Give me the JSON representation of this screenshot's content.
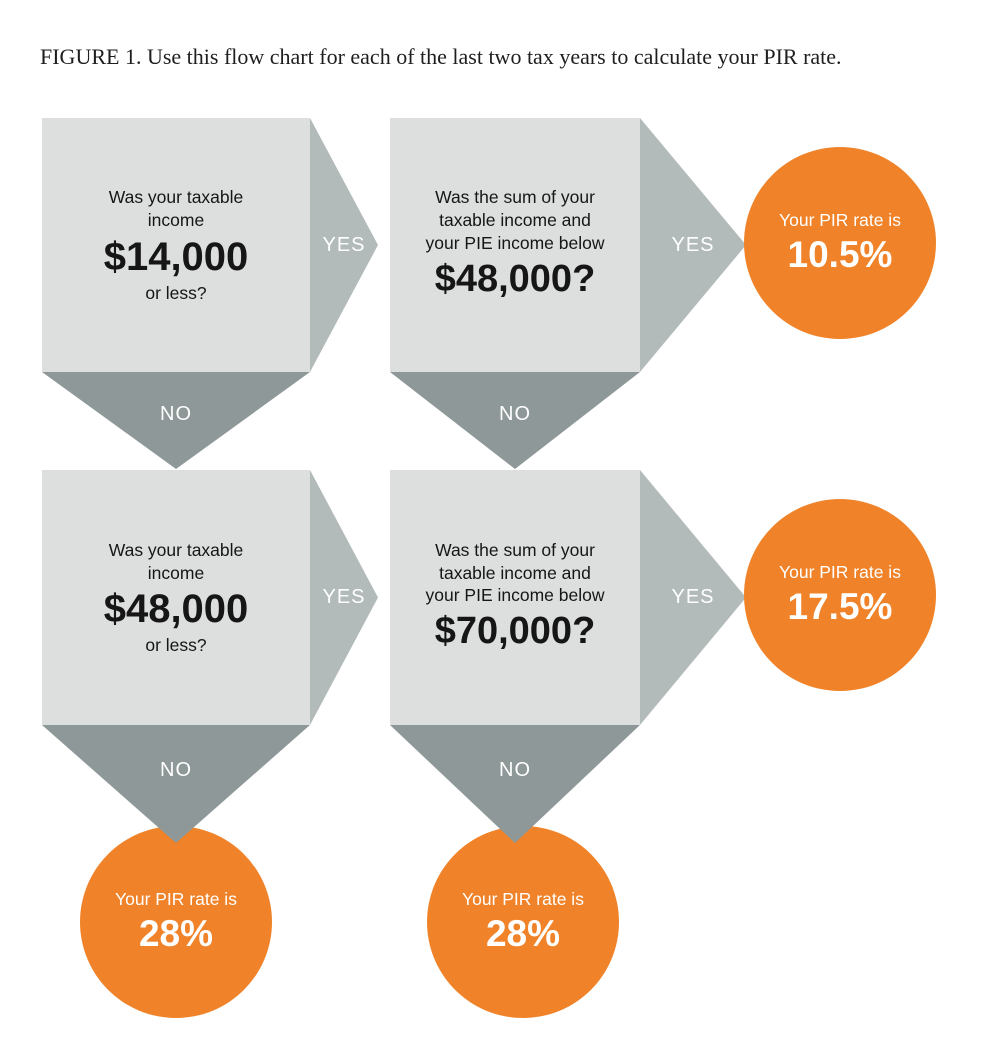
{
  "figure": {
    "caption": "FIGURE 1. Use this flow chart for each of the last two tax years to calculate your PIR rate."
  },
  "labels": {
    "yes": "YES",
    "no": "NO"
  },
  "colors": {
    "question_box": "#dcdfde",
    "yes_arrow": "#b2bbba",
    "no_arrow": "#8e9898",
    "result_circle": "#f08329",
    "question_text": "#161616",
    "arrow_text": "#ffffff"
  },
  "questions": {
    "q1": {
      "intro": "Was your taxable income",
      "amount": "$14,000",
      "outro": "or less?"
    },
    "q2": {
      "intro": "Was the sum of your taxable income and your PIE income below",
      "amount": "$48,000?"
    },
    "q3": {
      "intro": "Was your taxable income",
      "amount": "$48,000",
      "outro": "or less?"
    },
    "q4": {
      "intro": "Was the sum of your taxable income and your PIE income below",
      "amount": "$70,000?"
    }
  },
  "results": {
    "pir_105": {
      "prefix": "Your PIR rate is",
      "rate": "10.5%"
    },
    "pir_175": {
      "prefix": "Your PIR rate is",
      "rate": "17.5%"
    },
    "pir_28_left": {
      "prefix": "Your PIR rate is",
      "rate": "28%"
    },
    "pir_28_middle": {
      "prefix": "Your PIR rate is",
      "rate": "28%"
    }
  }
}
